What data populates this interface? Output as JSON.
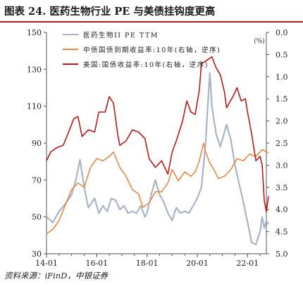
{
  "title": "图表 24. 医药生物行业 PE 与美债挂钩度更高",
  "source": "资料来源：iFinD，中银证券",
  "colors": {
    "pe": "#a9b4c6",
    "cn": "#e5894a",
    "us": "#b51b1b",
    "rule": "#b01c1c"
  },
  "chart_data": {
    "type": "line",
    "title": "图表 24. 医药生物行业 PE 与美债挂钩度更高",
    "unit_label": "(%)",
    "legend_position": "top",
    "grid": false,
    "x_axis": {
      "ticks": [
        "14-01",
        "16-01",
        "18-01",
        "20-01",
        "22-01"
      ],
      "range": [
        "2014-01",
        "2022-10"
      ]
    },
    "y_left": {
      "min": 30,
      "max": 150,
      "ticks": [
        30,
        50,
        70,
        90,
        110,
        130,
        150
      ]
    },
    "y_right": {
      "min": 0.0,
      "max": 5.0,
      "inverted": true,
      "ticks": [
        "0.0",
        "0.5",
        "1.0",
        "1.5",
        "2.0",
        "2.5",
        "3.0",
        "3.5",
        "4.0",
        "4.5",
        "5.0"
      ]
    },
    "series": [
      {
        "name": "医药生物II PE TTM",
        "axis": "left",
        "color": "#a9b4c6",
        "points": [
          [
            "2014-01",
            50
          ],
          [
            "2014-04",
            47
          ],
          [
            "2014-07",
            53
          ],
          [
            "2014-10",
            57
          ],
          [
            "2015-01",
            62
          ],
          [
            "2015-03",
            70
          ],
          [
            "2015-05",
            81
          ],
          [
            "2015-07",
            66
          ],
          [
            "2015-09",
            55
          ],
          [
            "2015-12",
            60
          ],
          [
            "2016-02",
            52
          ],
          [
            "2016-04",
            56
          ],
          [
            "2016-06",
            53
          ],
          [
            "2016-08",
            60
          ],
          [
            "2016-10",
            59
          ],
          [
            "2016-12",
            54
          ],
          [
            "2017-02",
            56
          ],
          [
            "2017-04",
            52
          ],
          [
            "2017-06",
            53
          ],
          [
            "2017-08",
            52
          ],
          [
            "2017-10",
            56
          ],
          [
            "2017-12",
            50
          ],
          [
            "2018-01",
            52
          ],
          [
            "2018-03",
            62
          ],
          [
            "2018-05",
            70
          ],
          [
            "2018-07",
            62
          ],
          [
            "2018-09",
            58
          ],
          [
            "2018-11",
            52
          ],
          [
            "2019-01",
            48
          ],
          [
            "2019-03",
            55
          ],
          [
            "2019-05",
            52
          ],
          [
            "2019-07",
            53
          ],
          [
            "2019-09",
            52
          ],
          [
            "2019-11",
            56
          ],
          [
            "2020-01",
            60
          ],
          [
            "2020-03",
            66
          ],
          [
            "2020-05",
            90
          ],
          [
            "2020-06",
            110
          ],
          [
            "2020-07",
            128
          ],
          [
            "2020-08",
            110
          ],
          [
            "2020-10",
            95
          ],
          [
            "2020-12",
            88
          ],
          [
            "2021-02",
            96
          ],
          [
            "2021-03",
            100
          ],
          [
            "2021-05",
            92
          ],
          [
            "2021-07",
            78
          ],
          [
            "2021-09",
            68
          ],
          [
            "2021-11",
            58
          ],
          [
            "2022-01",
            47
          ],
          [
            "2022-03",
            36
          ],
          [
            "2022-05",
            35
          ],
          [
            "2022-07",
            42
          ],
          [
            "2022-08",
            50
          ],
          [
            "2022-09",
            44
          ],
          [
            "2022-10",
            48
          ],
          [
            "2022-11",
            46
          ]
        ]
      },
      {
        "name": "中债国债到期收益率:10年(右轴，逆序)",
        "axis": "right",
        "color": "#e5894a",
        "points": [
          [
            "2014-01",
            4.55
          ],
          [
            "2014-04",
            4.45
          ],
          [
            "2014-07",
            4.25
          ],
          [
            "2014-10",
            3.9
          ],
          [
            "2015-01",
            3.55
          ],
          [
            "2015-04",
            3.4
          ],
          [
            "2015-07",
            3.5
          ],
          [
            "2015-10",
            3.05
          ],
          [
            "2016-01",
            2.85
          ],
          [
            "2016-04",
            2.9
          ],
          [
            "2016-07",
            2.8
          ],
          [
            "2016-09",
            2.7
          ],
          [
            "2016-12",
            3.05
          ],
          [
            "2017-03",
            3.25
          ],
          [
            "2017-06",
            3.55
          ],
          [
            "2017-09",
            3.65
          ],
          [
            "2017-11",
            3.95
          ],
          [
            "2018-02",
            3.85
          ],
          [
            "2018-05",
            3.6
          ],
          [
            "2018-08",
            3.6
          ],
          [
            "2018-11",
            3.4
          ],
          [
            "2019-01",
            3.1
          ],
          [
            "2019-04",
            3.35
          ],
          [
            "2019-07",
            3.15
          ],
          [
            "2019-10",
            3.25
          ],
          [
            "2019-12",
            3.15
          ],
          [
            "2020-02",
            2.9
          ],
          [
            "2020-04",
            2.5
          ],
          [
            "2020-05",
            2.7
          ],
          [
            "2020-07",
            2.95
          ],
          [
            "2020-09",
            3.1
          ],
          [
            "2020-11",
            3.3
          ],
          [
            "2021-02",
            3.25
          ],
          [
            "2021-05",
            3.1
          ],
          [
            "2021-08",
            2.85
          ],
          [
            "2021-11",
            2.9
          ],
          [
            "2022-02",
            2.75
          ],
          [
            "2022-05",
            2.8
          ],
          [
            "2022-08",
            2.65
          ],
          [
            "2022-11",
            2.72
          ]
        ]
      },
      {
        "name": "美国:国债收益率:10年(右轴，逆序)",
        "axis": "right",
        "color": "#b51b1b",
        "points": [
          [
            "2014-01",
            2.9
          ],
          [
            "2014-03",
            2.7
          ],
          [
            "2014-06",
            2.6
          ],
          [
            "2014-09",
            2.55
          ],
          [
            "2014-12",
            2.2
          ],
          [
            "2015-02",
            1.95
          ],
          [
            "2015-04",
            1.9
          ],
          [
            "2015-06",
            2.35
          ],
          [
            "2015-09",
            2.2
          ],
          [
            "2015-12",
            2.25
          ],
          [
            "2016-02",
            1.8
          ],
          [
            "2016-05",
            1.8
          ],
          [
            "2016-07",
            1.45
          ],
          [
            "2016-09",
            1.6
          ],
          [
            "2016-11",
            2.3
          ],
          [
            "2016-12",
            2.55
          ],
          [
            "2017-03",
            2.45
          ],
          [
            "2017-06",
            2.2
          ],
          [
            "2017-09",
            2.25
          ],
          [
            "2017-12",
            2.4
          ],
          [
            "2018-02",
            2.85
          ],
          [
            "2018-05",
            3.05
          ],
          [
            "2018-08",
            2.9
          ],
          [
            "2018-11",
            3.2
          ],
          [
            "2019-01",
            2.7
          ],
          [
            "2019-03",
            2.45
          ],
          [
            "2019-06",
            2.0
          ],
          [
            "2019-08",
            1.55
          ],
          [
            "2019-10",
            1.8
          ],
          [
            "2019-12",
            1.85
          ],
          [
            "2020-02",
            1.3
          ],
          [
            "2020-03",
            0.7
          ],
          [
            "2020-05",
            0.65
          ],
          [
            "2020-08",
            0.55
          ],
          [
            "2020-10",
            0.8
          ],
          [
            "2020-12",
            0.95
          ],
          [
            "2021-02",
            1.35
          ],
          [
            "2021-03",
            1.7
          ],
          [
            "2021-06",
            1.45
          ],
          [
            "2021-08",
            1.25
          ],
          [
            "2021-10",
            1.55
          ],
          [
            "2021-12",
            1.5
          ],
          [
            "2022-01",
            1.8
          ],
          [
            "2022-03",
            2.3
          ],
          [
            "2022-05",
            2.9
          ],
          [
            "2022-07",
            2.8
          ],
          [
            "2022-08",
            3.0
          ],
          [
            "2022-09",
            3.8
          ],
          [
            "2022-10",
            4.05
          ],
          [
            "2022-11",
            3.7
          ]
        ]
      }
    ]
  }
}
